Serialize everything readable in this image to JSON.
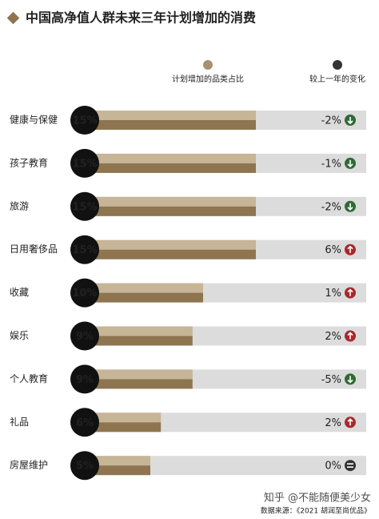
{
  "chart_data": {
    "type": "bar",
    "title": "中国高净值人群未来三年计划增加的消费",
    "categories": [
      "健康与保健",
      "孩子教育",
      "旅游",
      "日用奢侈品",
      "收藏",
      "娱乐",
      "个人教育",
      "礼品",
      "房屋维护"
    ],
    "series": [
      {
        "name": "计划增加的品类占比",
        "color": "#a89070",
        "values": [
          15,
          15,
          15,
          15,
          10,
          9,
          9,
          6,
          5
        ],
        "value_labels": [
          "15%",
          "15%",
          "15%",
          "15%",
          "10%",
          "9%",
          "9%",
          "6%",
          "5%"
        ]
      },
      {
        "name": "较上一年的变化",
        "color": "#333333",
        "values": [
          -2,
          -1,
          -2,
          6,
          1,
          2,
          -5,
          2,
          0
        ],
        "value_labels": [
          "-2%",
          "-1%",
          "-2%",
          "6%",
          "1%",
          "2%",
          "-5%",
          "2%",
          "0%"
        ]
      }
    ],
    "xlim": [
      0,
      25
    ],
    "watermark": "知乎 @不能随便美少女",
    "source": "数据来源：《2021 胡润至尚优品》"
  }
}
